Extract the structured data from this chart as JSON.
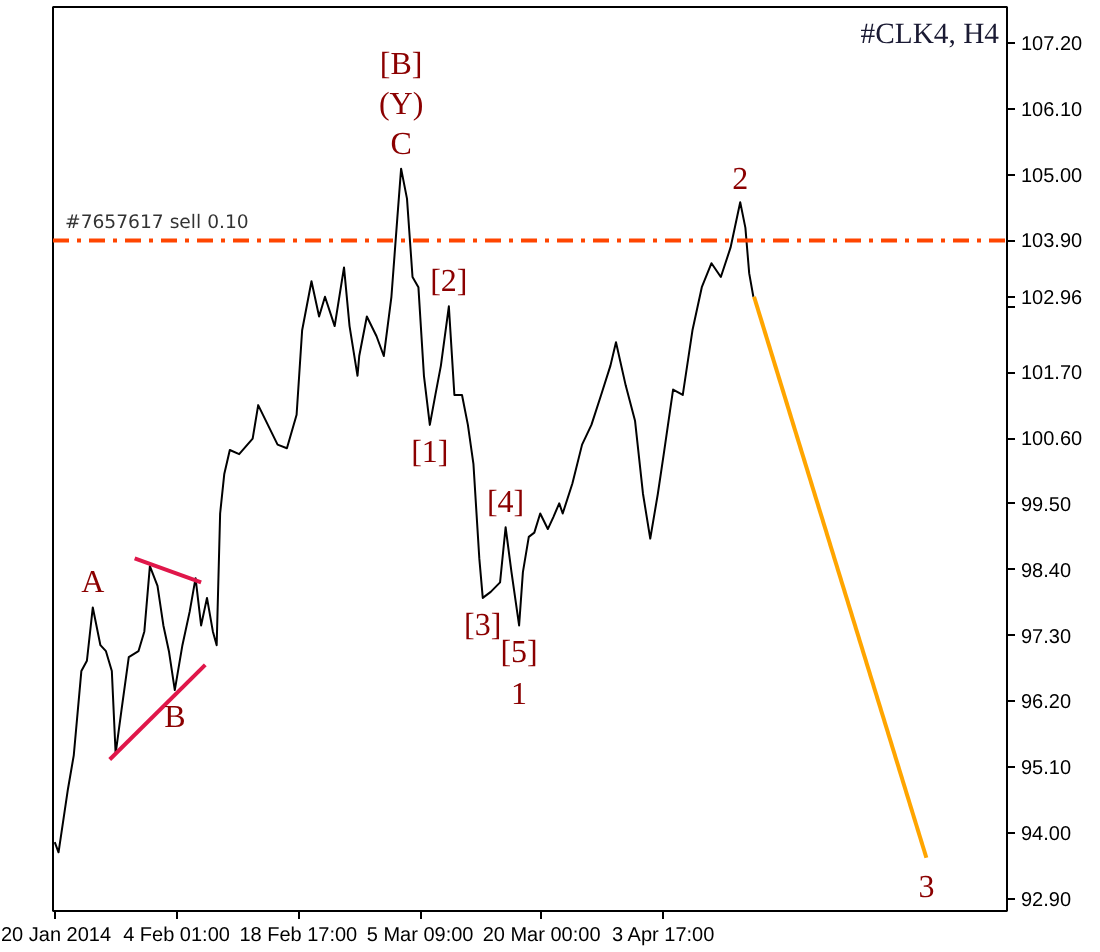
{
  "chart_data": {
    "type": "line",
    "title": "#CLK4, H4",
    "xlim": [
      "2014-01-20T04:00",
      "2014-05-15T01:00"
    ],
    "ylim": [
      92.7,
      107.8
    ],
    "xticks": [
      {
        "value": "2014-01-20T09:00",
        "label": "20 Jan 2014"
      },
      {
        "value": "2014-02-04T01:00",
        "label": "4 Feb 01:00"
      },
      {
        "value": "2014-02-18T17:00",
        "label": "18 Feb 17:00"
      },
      {
        "value": "2014-03-05T09:00",
        "label": "5 Mar 09:00"
      },
      {
        "value": "2014-03-20T00:00",
        "label": "20 Mar 00:00"
      },
      {
        "value": "2014-04-03T17:00",
        "label": "3 Apr 17:00"
      }
    ],
    "yticks": [
      {
        "value": 92.9,
        "label": "92.90"
      },
      {
        "value": 94.0,
        "label": "94.00"
      },
      {
        "value": 95.1,
        "label": "95.10"
      },
      {
        "value": 96.2,
        "label": "96.20"
      },
      {
        "value": 97.3,
        "label": "97.30"
      },
      {
        "value": 98.4,
        "label": "98.40"
      },
      {
        "value": 99.5,
        "label": "99.50"
      },
      {
        "value": 100.6,
        "label": "100.60"
      },
      {
        "value": 101.7,
        "label": "101.70"
      },
      {
        "value": 102.8,
        "label": null
      },
      {
        "value": 102.96,
        "label": "102.96"
      },
      {
        "value": 103.9,
        "label": "103.90"
      },
      {
        "value": 105.0,
        "label": "105.00"
      },
      {
        "value": 106.1,
        "label": "106.10"
      },
      {
        "value": 107.2,
        "label": "107.20"
      }
    ],
    "grid": false,
    "marker": "none",
    "line_style": "solid",
    "series": [
      {
        "color": "#000000",
        "x": [
          "2014-01-20T09:00",
          "2014-01-20T20:00",
          "2014-01-21T23:00",
          "2014-01-22T16:00",
          "2014-01-23T14:00",
          "2014-01-24T06:00",
          "2014-01-24T23:00",
          "2014-01-25T21:00",
          "2014-01-26T13:00",
          "2014-01-27T06:00",
          "2014-01-27T17:00",
          "2014-01-28T10:00",
          "2014-01-29T07:00",
          "2014-01-30T11:00",
          "2014-01-31T04:00",
          "2014-01-31T20:00",
          "2014-02-01T18:00",
          "2014-02-02T11:00",
          "2014-02-03T03:00",
          "2014-02-03T20:00",
          "2014-02-04T18:00",
          "2014-02-05T15:00",
          "2014-02-06T08:00",
          "2014-02-07T00:00",
          "2014-02-07T17:00",
          "2014-02-08T10:00",
          "2014-02-08T21:00",
          "2014-02-09T07:00",
          "2014-02-09T19:00",
          "2014-02-10T11:00",
          "2014-02-11T14:00",
          "2014-02-13T05:00",
          "2014-02-13T21:00",
          "2014-02-15T01:00",
          "2014-02-16T05:00",
          "2014-02-17T08:00",
          "2014-02-18T12:00",
          "2014-02-19T04:00",
          "2014-02-20T07:00",
          "2014-02-21T05:00",
          "2014-02-21T22:00",
          "2014-02-23T02:00",
          "2014-02-24T05:00",
          "2014-02-24T21:00",
          "2014-02-25T20:00",
          "2014-02-26T01:00",
          "2014-02-26T23:00",
          "2014-02-28T03:00",
          "2014-03-01T00:00",
          "2014-03-01T22:00",
          "2014-03-02T15:00",
          "2014-03-03T02:00",
          "2014-03-03T19:00",
          "2014-03-04T11:00",
          "2014-03-05T04:00",
          "2014-03-05T20:00",
          "2014-03-06T13:00",
          "2014-03-07T05:00",
          "2014-03-07T21:00",
          "2014-03-08T20:00",
          "2014-03-09T12:00",
          "2014-03-10T10:00",
          "2014-03-11T03:00",
          "2014-03-11T19:00",
          "2014-03-12T12:00",
          "2014-03-12T22:00",
          "2014-03-13T21:00",
          "2014-03-15T00:00",
          "2014-03-15T16:00",
          "2014-03-16T09:00",
          "2014-03-17T07:00",
          "2014-03-17T18:00",
          "2014-03-18T11:00",
          "2014-03-19T03:00",
          "2014-03-19T20:00",
          "2014-03-20T18:00",
          "2014-03-21T10:00",
          "2014-03-22T03:00",
          "2014-03-22T13:00",
          "2014-03-23T17:00",
          "2014-03-24T21:00",
          "2014-03-26T00:00",
          "2014-03-27T04:00",
          "2014-03-28T07:00",
          "2014-03-28T23:00",
          "2014-03-30T03:00",
          "2014-03-31T06:00",
          "2014-04-01T05:00",
          "2014-04-02T02:00",
          "2014-04-03T00:00",
          "2014-04-03T17:00",
          "2014-04-04T20:00",
          "2014-04-06T00:00",
          "2014-04-07T04:00",
          "2014-04-08T07:00",
          "2014-04-09T11:00",
          "2014-04-10T14:00",
          "2014-04-11T18:00",
          "2014-04-12T22:00",
          "2014-04-13T13:00",
          "2014-04-14T00:00",
          "2014-04-14T12:00"
        ],
        "values": [
          93.85,
          93.68,
          94.73,
          95.3,
          96.71,
          96.88,
          97.77,
          97.14,
          97.04,
          96.71,
          95.33,
          96.06,
          96.94,
          97.04,
          97.37,
          98.46,
          98.13,
          97.47,
          97.04,
          96.39,
          97.14,
          97.7,
          98.26,
          97.47,
          97.93,
          97.37,
          97.14,
          99.34,
          100.0,
          100.4,
          100.33,
          100.59,
          101.15,
          100.82,
          100.49,
          100.43,
          100.99,
          102.4,
          103.22,
          102.63,
          102.96,
          102.47,
          103.45,
          102.47,
          101.64,
          101.97,
          102.63,
          102.3,
          101.97,
          102.96,
          104.27,
          105.1,
          104.6,
          103.29,
          103.12,
          101.64,
          100.82,
          101.32,
          101.81,
          102.8,
          101.32,
          101.32,
          100.82,
          100.17,
          98.59,
          97.93,
          98.03,
          98.19,
          99.11,
          98.36,
          97.47,
          98.36,
          98.95,
          99.02,
          99.34,
          99.08,
          99.28,
          99.51,
          99.34,
          99.84,
          100.49,
          100.82,
          101.32,
          101.81,
          102.2,
          101.48,
          100.89,
          99.67,
          98.92,
          99.67,
          100.33,
          101.41,
          101.32,
          102.4,
          103.12,
          103.52,
          103.29,
          103.78,
          104.54,
          104.11,
          103.35,
          102.96
        ]
      },
      {
        "color": "#ffa500",
        "x": [
          "2014-04-14T14:00",
          "2014-05-05T08:00"
        ],
        "values": [
          102.96,
          93.59
        ]
      },
      {
        "color": "#e0174a",
        "x": [
          "2014-01-30T00:00",
          "2014-02-07T00:00"
        ],
        "values": [
          98.59,
          98.19
        ]
      },
      {
        "color": "#e0174a",
        "x": [
          "2014-01-27T00:00",
          "2014-02-07T12:00"
        ],
        "values": [
          95.23,
          96.81
        ]
      }
    ],
    "ref_lines": [
      {
        "axis": "y",
        "value": 103.9,
        "label": "#7657617 sell 0.10",
        "color": "#ff4500",
        "line_style": "dashed"
      }
    ],
    "annotations": [
      {
        "text": "C",
        "x": "2014-03-03T02:00",
        "y": 105.1
      },
      {
        "text": "(Y)",
        "x": "2014-03-03T02:00",
        "y": 105.1
      },
      {
        "text": "[B]",
        "x": "2014-03-03T02:00",
        "y": 105.1
      },
      {
        "text": "[2]",
        "x": "2014-03-08T20:00",
        "y": 102.8
      },
      {
        "text": "[1]",
        "x": "2014-03-06T13:00",
        "y": 100.82
      },
      {
        "text": "[4]",
        "x": "2014-03-15T16:00",
        "y": 99.11
      },
      {
        "text": "[3]",
        "x": "2014-03-12T22:00",
        "y": 97.93
      },
      {
        "text": "[5]",
        "x": "2014-03-17T07:00",
        "y": 97.47
      },
      {
        "text": "1",
        "x": "2014-03-17T07:00",
        "y": 97.47
      },
      {
        "text": "2",
        "x": "2014-04-12T22:00",
        "y": 104.54
      },
      {
        "text": "3",
        "x": "2014-05-05T08:00",
        "y": 93.59
      },
      {
        "text": "A",
        "x": "2014-01-24T23:00",
        "y": 97.77
      },
      {
        "text": "B",
        "x": "2014-02-03T20:00",
        "y": 96.39
      }
    ]
  }
}
